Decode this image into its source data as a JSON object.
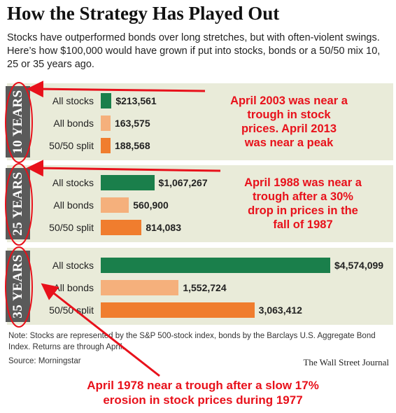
{
  "header": {
    "title": "How the Strategy Has Played Out",
    "subtitle": "Stocks have outperformed bonds over long stretches, but with often-violent swings. Here’s how $100,000 would have grown if put into stocks, bonds or a 50/50 mix 10, 25 or 35 years ago."
  },
  "colors": {
    "stocks": "#1a7f4b",
    "bonds": "#f5b07c",
    "split": "#f07d2e",
    "panel_bg": "#e9ebd9",
    "label_bg": "#5a5a5a",
    "annotation": "#e8111b"
  },
  "chart_data": {
    "type": "bar",
    "orientation": "horizontal",
    "categories": [
      "All stocks",
      "All bonds",
      "50/50 split"
    ],
    "groups": [
      {
        "label": "10 YEARS",
        "values": [
          213561,
          163575,
          188568
        ],
        "value_labels": [
          "$213,561",
          "163,575",
          "188,568"
        ]
      },
      {
        "label": "25 YEARS",
        "values": [
          1067267,
          560900,
          814083
        ],
        "value_labels": [
          "$1,067,267",
          "560,900",
          "814,083"
        ]
      },
      {
        "label": "35 YEARS",
        "values": [
          4574099,
          1552724,
          3063412
        ],
        "value_labels": [
          "$4,574,099",
          "1,552,724",
          "3,063,412"
        ]
      }
    ],
    "xlim": [
      0,
      4574099
    ]
  },
  "annotations": {
    "a10": [
      "April 2003 was near a",
      "trough in stock",
      "prices.  April 2013",
      "was near a peak"
    ],
    "a25": [
      "April 1988 was near a",
      "trough after a 30%",
      "drop in prices in the",
      "fall of 1987"
    ],
    "a35": [
      "April 1978 near a trough after a slow 17%",
      "erosion in stock prices during 1977"
    ]
  },
  "footer": {
    "note": "Note: Stocks are represented by the S&P 500-stock index, bonds by the Barclays U.S. Aggregate Bond Index. Returns are through April.",
    "source": "Source: Morningstar",
    "publisher": "The Wall Street Journal"
  }
}
